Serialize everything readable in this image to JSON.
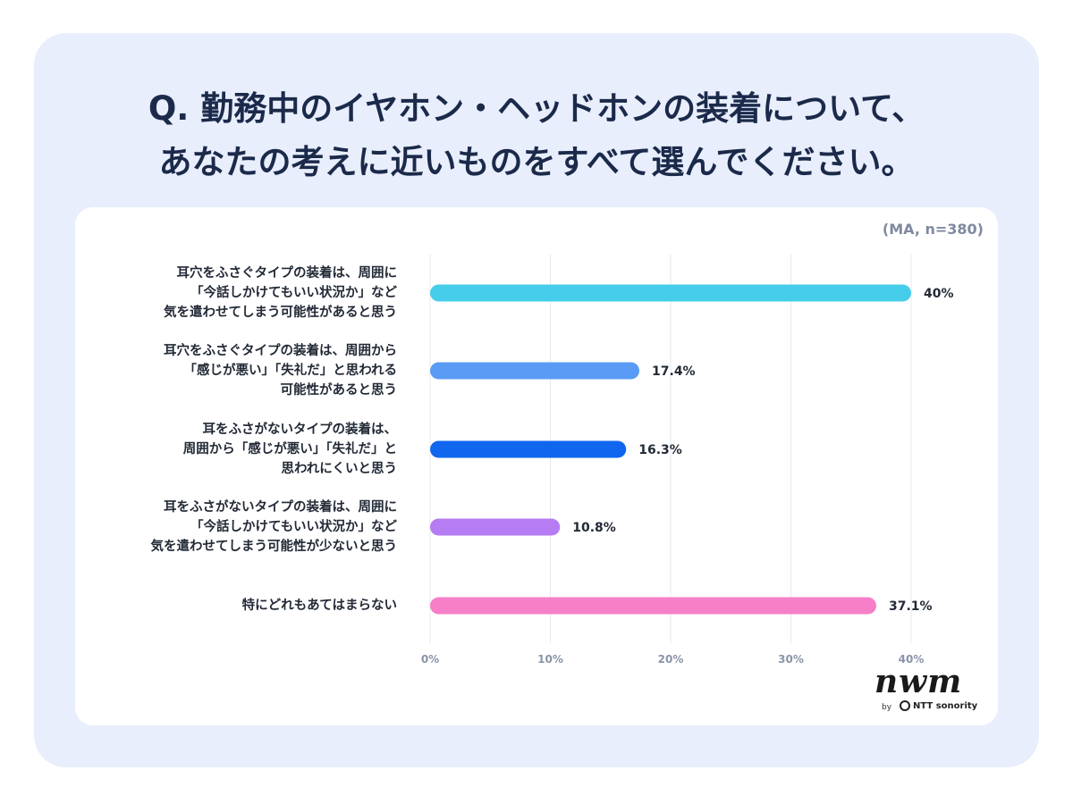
{
  "title_lines": [
    "Q. 勤務中のイヤホン・ヘッドホンの装着について、",
    "あなたの考えに近いものをすべて選んでください。"
  ],
  "meta_note": "(MA, n=380)",
  "logo": {
    "word": "nwm",
    "by": "by",
    "brand": "NTT sonority"
  },
  "chart_data": {
    "type": "bar",
    "orientation": "horizontal",
    "categories": [
      [
        "耳穴をふさぐタイプの装着は、周囲に",
        "「今話しかけてもいい状況か」など",
        "気を遣わせてしまう可能性があると思う"
      ],
      [
        "耳穴をふさぐタイプの装着は、周囲から",
        "「感じが悪い」「失礼だ」と思われる",
        "可能性があると思う"
      ],
      [
        "耳をふさがないタイプの装着は、",
        "周囲から「感じが悪い」「失礼だ」と",
        "思われにくいと思う"
      ],
      [
        "耳をふさがないタイプの装着は、周囲に",
        "「今話しかけてもいい状況か」など",
        "気を遣わせてしまう可能性が少ないと思う"
      ],
      [
        "特にどれもあてはまらない"
      ]
    ],
    "values": [
      40,
      17.4,
      16.3,
      10.8,
      37.1
    ],
    "value_labels": [
      "40%",
      "17.4%",
      "16.3%",
      "10.8%",
      "37.1%"
    ],
    "colors": [
      "#45cdea",
      "#5a9cf5",
      "#1067ee",
      "#b57cf3",
      "#f67fc7"
    ],
    "x_ticks": [
      0,
      10,
      20,
      30,
      40
    ],
    "x_tick_labels": [
      "0%",
      "10%",
      "20%",
      "30%",
      "40%"
    ],
    "xlim": [
      0,
      40
    ],
    "grid": true
  }
}
